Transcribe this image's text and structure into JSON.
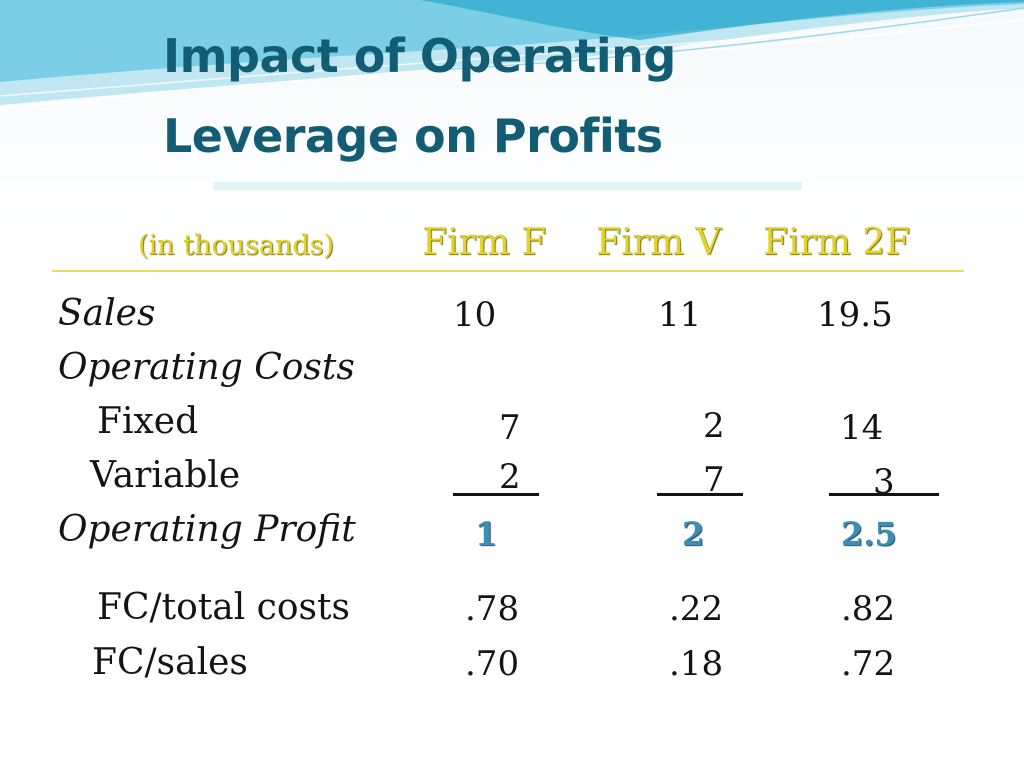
{
  "slide": {
    "title_line1": "Impact of Operating",
    "title_line2": "Leverage on Profits"
  },
  "table": {
    "units_label": "(in thousands)",
    "columns": [
      "Firm F",
      "Firm V",
      "Firm 2F"
    ],
    "rows": {
      "sales": {
        "label": "Sales",
        "values": [
          "10",
          "11",
          "19.5"
        ]
      },
      "operating_costs": {
        "label": "Operating Costs"
      },
      "fixed": {
        "label": "Fixed",
        "values": [
          "7",
          "2",
          "14"
        ]
      },
      "variable": {
        "label": "Variable",
        "values": [
          "2",
          "7",
          "3"
        ]
      },
      "operating_profit": {
        "label": "Operating Profit",
        "values": [
          "1",
          "2",
          "2.5"
        ]
      },
      "fc_total_costs": {
        "label": "FC/total costs",
        "values": [
          ".78",
          ".22",
          ".82"
        ]
      },
      "fc_sales": {
        "label": "FC/sales",
        "values": [
          ".70",
          ".18",
          ".72"
        ]
      }
    }
  },
  "colors": {
    "title": "#135d74",
    "header": "#e2d22a",
    "profit": "#3e8db4",
    "text": "#141414"
  }
}
